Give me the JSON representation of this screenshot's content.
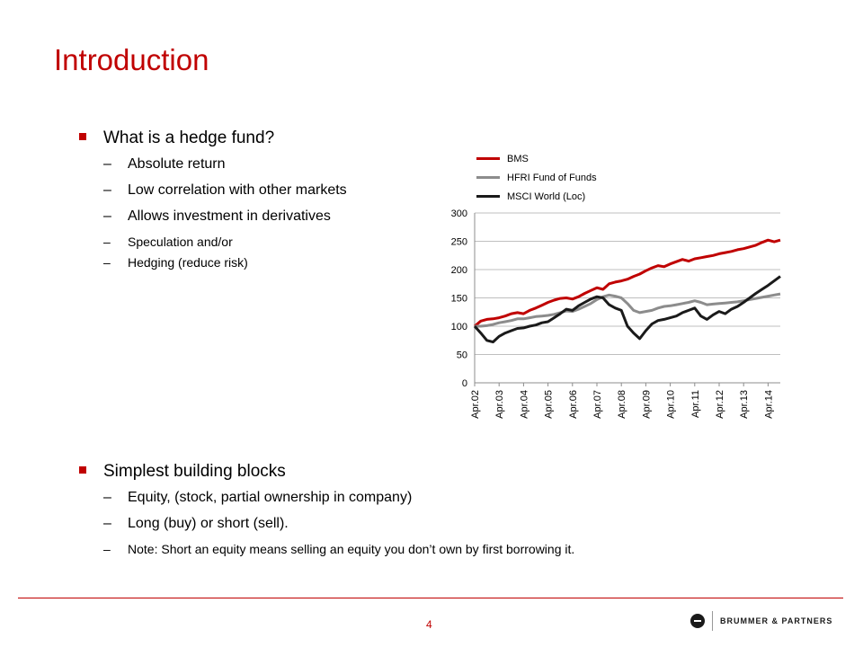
{
  "slide": {
    "title": "Introduction",
    "page_number": "4",
    "brand_text": "BRUMMER & PARTNERS"
  },
  "bullets1": {
    "heading": "What is a hedge fund?",
    "items": [
      "Absolute return",
      "Low correlation with other markets",
      "Allows investment in derivatives"
    ],
    "subitems": [
      "Speculation and/or",
      "Hedging (reduce risk)"
    ]
  },
  "bullets2": {
    "heading": "Simplest building blocks",
    "items": [
      "Equity, (stock, partial ownership in company)",
      "Long (buy) or short (sell)."
    ],
    "subitems": [
      "Note: Short an equity means selling an equity you don’t own by first borrowing it."
    ]
  },
  "symbols": {
    "dash": "–"
  },
  "colors": {
    "accent": "#c00000",
    "bms": "#c00000",
    "hfri": "#8c8c8c",
    "msci": "#1a1a1a"
  },
  "chart_data": {
    "type": "line",
    "title": "",
    "xlabel": "",
    "ylabel": "",
    "ylim": [
      0,
      300
    ],
    "yticks": [
      0,
      50,
      100,
      150,
      200,
      250,
      300
    ],
    "categories": [
      "Apr.02",
      "Apr.03",
      "Apr.04",
      "Apr.05",
      "Apr.06",
      "Apr.07",
      "Apr.08",
      "Apr.09",
      "Apr.10",
      "Apr.11",
      "Apr.12",
      "Apr.13",
      "Apr.14"
    ],
    "legend_position": "top",
    "grid": "horizontal",
    "series": [
      {
        "name": "BMS",
        "color": "#c00000",
        "x": [
          2002.25,
          2002.5,
          2002.75,
          2003.0,
          2003.25,
          2003.5,
          2003.75,
          2004.0,
          2004.25,
          2004.5,
          2004.75,
          2005.0,
          2005.25,
          2005.5,
          2005.75,
          2006.0,
          2006.25,
          2006.5,
          2006.75,
          2007.0,
          2007.25,
          2007.5,
          2007.75,
          2008.0,
          2008.25,
          2008.5,
          2008.75,
          2009.0,
          2009.25,
          2009.5,
          2009.75,
          2010.0,
          2010.25,
          2010.5,
          2010.75,
          2011.0,
          2011.25,
          2011.5,
          2011.75,
          2012.0,
          2012.25,
          2012.5,
          2012.75,
          2013.0,
          2013.25,
          2013.5,
          2013.75,
          2014.0,
          2014.25,
          2014.5,
          2014.75
        ],
        "y": [
          100,
          109,
          112,
          113,
          115,
          118,
          122,
          124,
          122,
          128,
          132,
          137,
          142,
          146,
          149,
          150,
          148,
          152,
          158,
          163,
          168,
          165,
          175,
          178,
          180,
          183,
          188,
          192,
          198,
          203,
          207,
          205,
          210,
          214,
          218,
          215,
          219,
          221,
          223,
          225,
          228,
          230,
          232,
          235,
          237,
          240,
          243,
          248,
          252,
          249,
          252
        ]
      },
      {
        "name": "HFRI Fund of Funds",
        "color": "#8c8c8c",
        "x": [
          2002.25,
          2002.5,
          2002.75,
          2003.0,
          2003.25,
          2003.5,
          2003.75,
          2004.0,
          2004.25,
          2004.5,
          2004.75,
          2005.0,
          2005.25,
          2005.5,
          2005.75,
          2006.0,
          2006.25,
          2006.5,
          2006.75,
          2007.0,
          2007.25,
          2007.5,
          2007.75,
          2008.0,
          2008.25,
          2008.5,
          2008.75,
          2009.0,
          2009.25,
          2009.5,
          2009.75,
          2010.0,
          2010.25,
          2010.5,
          2010.75,
          2011.0,
          2011.25,
          2011.5,
          2011.75,
          2012.0,
          2012.25,
          2012.5,
          2012.75,
          2013.0,
          2013.25,
          2013.5,
          2013.75,
          2014.0,
          2014.25,
          2014.5,
          2014.75
        ],
        "y": [
          100,
          100,
          101,
          103,
          106,
          108,
          110,
          113,
          113,
          115,
          117,
          118,
          119,
          121,
          124,
          127,
          126,
          130,
          135,
          140,
          147,
          152,
          155,
          153,
          150,
          140,
          128,
          124,
          126,
          128,
          132,
          135,
          136,
          138,
          140,
          142,
          145,
          142,
          138,
          139,
          140,
          141,
          142,
          143,
          145,
          147,
          149,
          151,
          153,
          155,
          157
        ]
      },
      {
        "name": "MSCI World (Loc)",
        "color": "#1a1a1a",
        "x": [
          2002.25,
          2002.5,
          2002.75,
          2003.0,
          2003.25,
          2003.5,
          2003.75,
          2004.0,
          2004.25,
          2004.5,
          2004.75,
          2005.0,
          2005.25,
          2005.5,
          2005.75,
          2006.0,
          2006.25,
          2006.5,
          2006.75,
          2007.0,
          2007.25,
          2007.5,
          2007.75,
          2008.0,
          2008.25,
          2008.5,
          2008.75,
          2009.0,
          2009.25,
          2009.5,
          2009.75,
          2010.0,
          2010.25,
          2010.5,
          2010.75,
          2011.0,
          2011.25,
          2011.5,
          2011.75,
          2012.0,
          2012.25,
          2012.5,
          2012.75,
          2013.0,
          2013.25,
          2013.5,
          2013.75,
          2014.0,
          2014.25,
          2014.5,
          2014.75
        ],
        "y": [
          100,
          88,
          75,
          72,
          82,
          88,
          92,
          96,
          97,
          100,
          102,
          106,
          108,
          115,
          122,
          130,
          128,
          136,
          142,
          148,
          152,
          150,
          138,
          132,
          128,
          100,
          88,
          78,
          92,
          104,
          110,
          112,
          115,
          118,
          124,
          128,
          132,
          118,
          112,
          120,
          126,
          122,
          130,
          135,
          142,
          150,
          158,
          165,
          172,
          180,
          188
        ]
      }
    ]
  }
}
